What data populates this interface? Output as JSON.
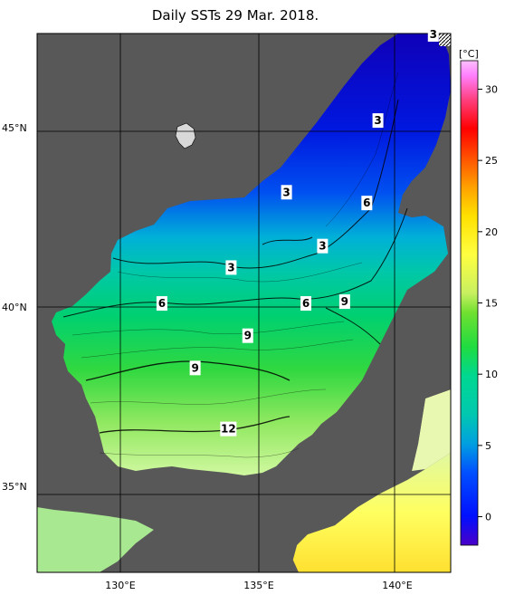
{
  "title": "Daily SSTs 29 Mar. 2018.",
  "units": "[°C]",
  "colorbar": {
    "ticks": [
      30,
      25,
      20,
      15,
      10,
      5,
      0
    ],
    "min": -2,
    "max": 32,
    "colors": [
      "#4a00c8",
      "#0010ff",
      "#0050ff",
      "#00a0e0",
      "#00c8b0",
      "#00d890",
      "#20dc40",
      "#70e030",
      "#c8f060",
      "#ffff40",
      "#ffe000",
      "#ffa000",
      "#ff5000",
      "#ff0000",
      "#ff4080",
      "#ff80ff",
      "#ffc0ff"
    ]
  },
  "axes": {
    "lat_labels": [
      {
        "text": "45°N",
        "value": 45
      },
      {
        "text": "40°N",
        "value": 40
      },
      {
        "text": "35°N",
        "value": 35
      }
    ],
    "lon_labels": [
      {
        "text": "130°E",
        "value": 130
      },
      {
        "text": "135°E",
        "value": 135
      },
      {
        "text": "140°E",
        "value": 140
      }
    ]
  },
  "contour_labels": [
    {
      "text": "3",
      "lon": 141.3,
      "lat": 47.6
    },
    {
      "text": "3",
      "lon": 139.3,
      "lat": 45.2
    },
    {
      "text": "3",
      "lon": 136.0,
      "lat": 43.2
    },
    {
      "text": "6",
      "lon": 138.9,
      "lat": 42.9
    },
    {
      "text": "3",
      "lon": 137.3,
      "lat": 41.7
    },
    {
      "text": "3",
      "lon": 134.0,
      "lat": 41.1
    },
    {
      "text": "6",
      "lon": 131.5,
      "lat": 40.1
    },
    {
      "text": "6",
      "lon": 136.7,
      "lat": 40.1
    },
    {
      "text": "9",
      "lon": 138.1,
      "lat": 40.15
    },
    {
      "text": "9",
      "lon": 134.6,
      "lat": 39.2
    },
    {
      "text": "9",
      "lon": 132.7,
      "lat": 38.3
    },
    {
      "text": "12",
      "lon": 133.9,
      "lat": 36.6
    }
  ]
}
